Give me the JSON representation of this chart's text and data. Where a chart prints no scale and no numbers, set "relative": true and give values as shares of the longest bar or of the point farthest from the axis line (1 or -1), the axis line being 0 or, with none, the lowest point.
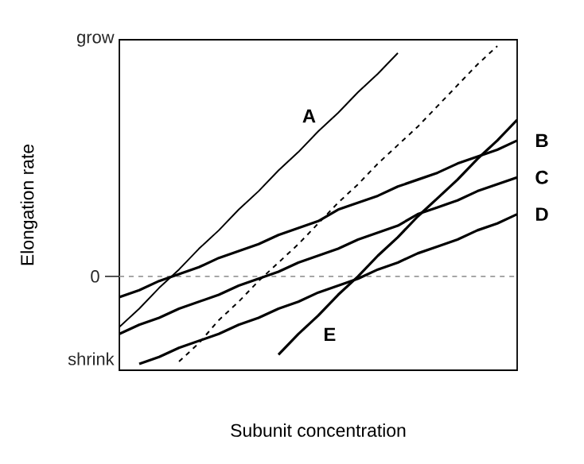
{
  "chart_data": {
    "type": "line",
    "relative": true,
    "xlabel": "Subunit concentration",
    "ylabel": "Elongation rate",
    "annotations": [
      "grow",
      "shrink"
    ],
    "categories": [
      null,
      null,
      null,
      null,
      null,
      null,
      null,
      null,
      null,
      null,
      null,
      null,
      null,
      null,
      null,
      null,
      null,
      null,
      null,
      null,
      null
    ],
    "ref_lines": [
      {
        "axis": "y",
        "value": 0,
        "label": "0",
        "color": "#999999",
        "line_style": "dashed"
      }
    ],
    "series": [
      {
        "name": "A",
        "color": "#000000",
        "values": [
          -0.22,
          -0.14,
          -0.05,
          0.03,
          0.12,
          0.2,
          0.29,
          0.37,
          0.46,
          0.54,
          0.63,
          0.71,
          0.8,
          0.88,
          0.97,
          null,
          null,
          null,
          null,
          null,
          null
        ]
      },
      {
        "color": "#000000",
        "line_style": "dashed",
        "values": [
          null,
          null,
          null,
          -0.37,
          -0.29,
          -0.19,
          -0.11,
          -0.02,
          0.06,
          0.14,
          0.23,
          0.32,
          0.4,
          0.49,
          0.57,
          0.65,
          0.74,
          0.83,
          0.92,
          1,
          null
        ]
      },
      {
        "name": "B",
        "color": "#000000",
        "values": [
          -0.09,
          -0.06,
          -0.02,
          0.01,
          0.04,
          0.08,
          0.11,
          0.14,
          0.18,
          0.21,
          0.24,
          0.29,
          0.32,
          0.35,
          0.39,
          0.42,
          0.45,
          0.49,
          0.52,
          0.55,
          0.59
        ]
      },
      {
        "name": "C",
        "color": "#000000",
        "values": [
          -0.25,
          -0.21,
          -0.18,
          -0.14,
          -0.11,
          -0.08,
          -0.04,
          -0.01,
          0.02,
          0.06,
          0.09,
          0.12,
          0.16,
          0.19,
          0.22,
          0.27,
          0.3,
          0.33,
          0.37,
          0.4,
          0.43
        ]
      },
      {
        "name": "D",
        "color": "#000000",
        "values": [
          null,
          -0.38,
          -0.35,
          -0.31,
          -0.28,
          -0.25,
          -0.21,
          -0.18,
          -0.14,
          -0.11,
          -0.07,
          -0.04,
          -0.01,
          0.03,
          0.06,
          0.1,
          0.13,
          0.16,
          0.2,
          0.23,
          0.27
        ]
      },
      {
        "name": "E",
        "color": "#000000",
        "values": [
          null,
          null,
          null,
          null,
          null,
          null,
          null,
          null,
          -0.34,
          -0.25,
          -0.17,
          -0.08,
          0.0,
          0.09,
          0.17,
          0.26,
          0.34,
          0.42,
          0.51,
          0.59,
          0.68
        ]
      }
    ]
  }
}
